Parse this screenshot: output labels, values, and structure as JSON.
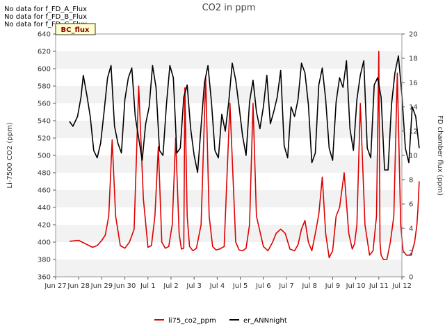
{
  "chart_data": {
    "type": "line",
    "title": "CO2 in ppm",
    "ylabel_left": "Li-7500 CO2 (ppm)",
    "ylabel_right": "FD chamber flux (ppm)",
    "xlabel": "",
    "ylim_left": [
      360,
      640
    ],
    "ylim_right": [
      0,
      20
    ],
    "y_ticks_left": [
      360,
      380,
      400,
      420,
      440,
      460,
      480,
      500,
      520,
      540,
      560,
      580,
      600,
      620,
      640
    ],
    "y_ticks_right": [
      0,
      2,
      4,
      6,
      8,
      10,
      12,
      14,
      16,
      18,
      20
    ],
    "x_tick_labels": [
      "Jun 27",
      "Jun 28",
      "Jun 29",
      "Jun 30",
      "Jul 1",
      "Jul 2",
      "Jul 3",
      "Jul 4",
      "Jul 5",
      "Jul 6",
      "Jul 7",
      "Jul 8",
      "Jul 9",
      "Jul 10",
      "Jul 11",
      "Jul 12"
    ],
    "grid": "horizontal bands",
    "legend_position": "bottom-center",
    "notes": [
      "No data for f_FD_A_Flux",
      "No data for f_FD_B_Flux",
      "No data for f_FD_C_Flux"
    ],
    "tag_label": "BC_flux",
    "series": [
      {
        "name": "li75_co2_ppm",
        "axis": "left",
        "color": "#dd0000",
        "x": [
          0.6,
          1.0,
          1.3,
          1.6,
          1.8,
          2.0,
          2.15,
          2.3,
          2.45,
          2.6,
          2.8,
          3.0,
          3.2,
          3.4,
          3.6,
          3.8,
          4.0,
          4.15,
          4.3,
          4.45,
          4.6,
          4.75,
          4.9,
          5.05,
          5.2,
          5.35,
          5.45,
          5.55,
          5.6,
          5.7,
          5.8,
          5.95,
          6.1,
          6.3,
          6.5,
          6.65,
          6.8,
          6.95,
          7.1,
          7.3,
          7.55,
          7.8,
          7.95,
          8.1,
          8.25,
          8.4,
          8.55,
          8.7,
          9.0,
          9.2,
          9.4,
          9.55,
          9.75,
          9.95,
          10.15,
          10.35,
          10.5,
          10.65,
          10.8,
          10.95,
          11.1,
          11.25,
          11.4,
          11.55,
          11.7,
          11.85,
          12.0,
          12.15,
          12.3,
          12.5,
          12.7,
          12.85,
          12.95,
          13.05,
          13.2,
          13.4,
          13.6,
          13.75,
          13.9,
          14.0,
          14.05,
          14.1,
          14.2,
          14.35,
          14.5,
          14.65,
          14.8,
          14.95,
          15.05,
          15.2,
          15.4,
          15.55,
          15.65,
          15.7,
          15.75
        ],
        "y": [
          401,
          402,
          398,
          394,
          396,
          402,
          408,
          430,
          518,
          430,
          396,
          393,
          400,
          415,
          580,
          450,
          394,
          396,
          430,
          510,
          400,
          393,
          395,
          420,
          520,
          410,
          392,
          393,
          578,
          430,
          395,
          390,
          393,
          420,
          590,
          430,
          395,
          391,
          392,
          395,
          560,
          400,
          391,
          390,
          393,
          420,
          560,
          430,
          395,
          390,
          400,
          410,
          415,
          410,
          392,
          390,
          397,
          415,
          425,
          400,
          390,
          410,
          432,
          475,
          410,
          382,
          390,
          430,
          440,
          480,
          410,
          392,
          398,
          420,
          560,
          420,
          385,
          390,
          430,
          620,
          400,
          385,
          380,
          380,
          400,
          430,
          595,
          420,
          390,
          385,
          385,
          400,
          420,
          440,
          470
        ]
      },
      {
        "name": "er_ANNnight",
        "axis": "right",
        "color": "#000000",
        "x": [
          0.6,
          0.75,
          0.95,
          1.1,
          1.2,
          1.35,
          1.5,
          1.65,
          1.8,
          1.95,
          2.1,
          2.25,
          2.4,
          2.55,
          2.7,
          2.85,
          3.0,
          3.15,
          3.3,
          3.45,
          3.6,
          3.75,
          3.9,
          4.05,
          4.2,
          4.35,
          4.5,
          4.65,
          4.8,
          4.95,
          5.1,
          5.25,
          5.4,
          5.55,
          5.7,
          5.85,
          6.0,
          6.15,
          6.3,
          6.45,
          6.6,
          6.75,
          6.9,
          7.05,
          7.2,
          7.35,
          7.5,
          7.65,
          7.8,
          7.95,
          8.1,
          8.25,
          8.4,
          8.55,
          8.7,
          8.85,
          9.0,
          9.15,
          9.3,
          9.45,
          9.6,
          9.75,
          9.9,
          10.05,
          10.2,
          10.35,
          10.5,
          10.65,
          10.8,
          10.95,
          11.1,
          11.25,
          11.4,
          11.55,
          11.7,
          11.85,
          12.0,
          12.15,
          12.3,
          12.45,
          12.6,
          12.75,
          12.9,
          13.05,
          13.2,
          13.35,
          13.5,
          13.65,
          13.8,
          13.95,
          14.1,
          14.25,
          14.4,
          14.55,
          14.7,
          14.85,
          15.0,
          15.15,
          15.3,
          15.45,
          15.6,
          15.75
        ],
        "y": [
          12.8,
          12.4,
          13.2,
          14.8,
          16.6,
          15.0,
          13.2,
          10.4,
          9.8,
          11.0,
          13.6,
          16.4,
          17.4,
          12.4,
          11.0,
          10.2,
          14.6,
          16.4,
          17.2,
          13.2,
          11.4,
          9.6,
          12.6,
          14.0,
          17.4,
          15.6,
          10.4,
          10.0,
          14.2,
          17.4,
          16.4,
          10.2,
          10.6,
          14.8,
          15.8,
          12.2,
          10.0,
          8.6,
          12.4,
          16.0,
          17.4,
          14.4,
          10.4,
          9.8,
          13.4,
          12.0,
          14.4,
          17.6,
          16.2,
          14.0,
          11.6,
          10.0,
          14.4,
          16.2,
          13.6,
          12.2,
          14.0,
          16.6,
          12.6,
          13.6,
          14.8,
          17.0,
          10.8,
          9.8,
          14.0,
          13.2,
          14.6,
          17.6,
          16.8,
          14.2,
          9.4,
          10.2,
          15.8,
          17.2,
          14.6,
          10.6,
          9.6,
          14.4,
          16.4,
          15.6,
          17.8,
          12.2,
          10.4,
          14.6,
          16.6,
          17.8,
          10.6,
          9.8,
          15.8,
          16.4,
          14.8,
          8.8,
          8.8,
          14.2,
          16.8,
          18.2,
          15.0,
          10.6,
          9.4,
          14.0,
          13.2,
          10.6
        ]
      }
    ]
  }
}
